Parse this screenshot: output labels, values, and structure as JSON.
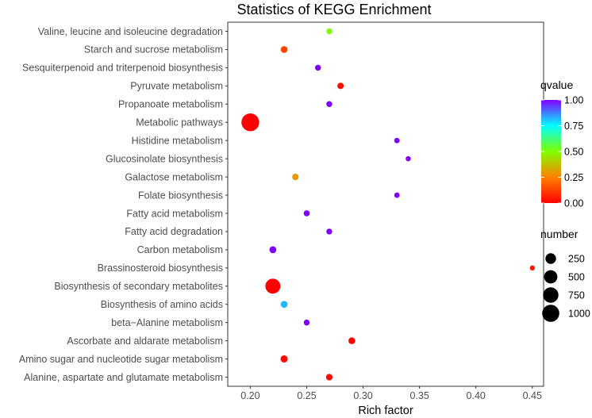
{
  "chart_data": {
    "type": "scatter",
    "title": "Statistics of KEGG Enrichment",
    "xlabel": "Rich factor",
    "ylabel": "",
    "xlim": [
      0.18,
      0.46
    ],
    "xticks": [
      0.2,
      0.25,
      0.3,
      0.35,
      0.4,
      0.45
    ],
    "xtick_labels": [
      "0.20",
      "0.25",
      "0.30",
      "0.35",
      "0.40",
      "0.45"
    ],
    "grid": false,
    "points": [
      {
        "label": "Valine, leucine and isoleucine degradation",
        "x": 0.27,
        "qvalue": 0.5,
        "number": 20
      },
      {
        "label": "Starch and sucrose metabolism",
        "x": 0.23,
        "qvalue": 0.13,
        "number": 45
      },
      {
        "label": "Sesquiterpenoid and triterpenoid biosynthesis",
        "x": 0.26,
        "qvalue": 1.0,
        "number": 20
      },
      {
        "label": "Pyruvate metabolism",
        "x": 0.28,
        "qvalue": 0.03,
        "number": 30
      },
      {
        "label": "Propanoate metabolism",
        "x": 0.27,
        "qvalue": 1.0,
        "number": 20
      },
      {
        "label": "Metabolic pathways",
        "x": 0.2,
        "qvalue": 0.0,
        "number": 1100
      },
      {
        "label": "Histidine metabolism",
        "x": 0.33,
        "qvalue": 1.0,
        "number": 10
      },
      {
        "label": "Glucosinolate biosynthesis",
        "x": 0.34,
        "qvalue": 1.0,
        "number": 6
      },
      {
        "label": "Galactose metabolism",
        "x": 0.24,
        "qvalue": 0.3,
        "number": 35
      },
      {
        "label": "Folate biosynthesis",
        "x": 0.33,
        "qvalue": 1.0,
        "number": 10
      },
      {
        "label": "Fatty acid metabolism",
        "x": 0.25,
        "qvalue": 1.0,
        "number": 22
      },
      {
        "label": "Fatty acid degradation",
        "x": 0.27,
        "qvalue": 1.0,
        "number": 18
      },
      {
        "label": "Carbon metabolism",
        "x": 0.22,
        "qvalue": 1.0,
        "number": 45
      },
      {
        "label": "Brassinosteroid biosynthesis",
        "x": 0.45,
        "qvalue": 0.04,
        "number": 5
      },
      {
        "label": "Biosynthesis of secondary metabolites",
        "x": 0.22,
        "qvalue": 0.0,
        "number": 700
      },
      {
        "label": "Biosynthesis of amino acids",
        "x": 0.23,
        "qvalue": 0.82,
        "number": 45
      },
      {
        "label": "beta−Alanine metabolism",
        "x": 0.25,
        "qvalue": 1.0,
        "number": 20
      },
      {
        "label": "Ascorbate and aldarate metabolism",
        "x": 0.29,
        "qvalue": 0.0,
        "number": 40
      },
      {
        "label": "Amino sugar and nucleotide sugar metabolism",
        "x": 0.23,
        "qvalue": 0.02,
        "number": 55
      },
      {
        "label": "Alanine, aspartate and glutamate metabolism",
        "x": 0.27,
        "qvalue": 0.02,
        "number": 35
      }
    ],
    "color_legend": {
      "title": "qvalue",
      "ticks": [
        0.0,
        0.25,
        0.5,
        0.75,
        1.0
      ],
      "tick_labels": [
        "0.00",
        "0.25",
        "0.50",
        "0.75",
        "1.00"
      ],
      "colors": [
        "#ff0000",
        "#ff8000",
        "#80ff00",
        "#00ffff",
        "#8000ff"
      ]
    },
    "size_legend": {
      "title": "number",
      "values": [
        250,
        500,
        750,
        1000
      ],
      "labels": [
        "250",
        "500",
        "750",
        "1000"
      ]
    }
  }
}
